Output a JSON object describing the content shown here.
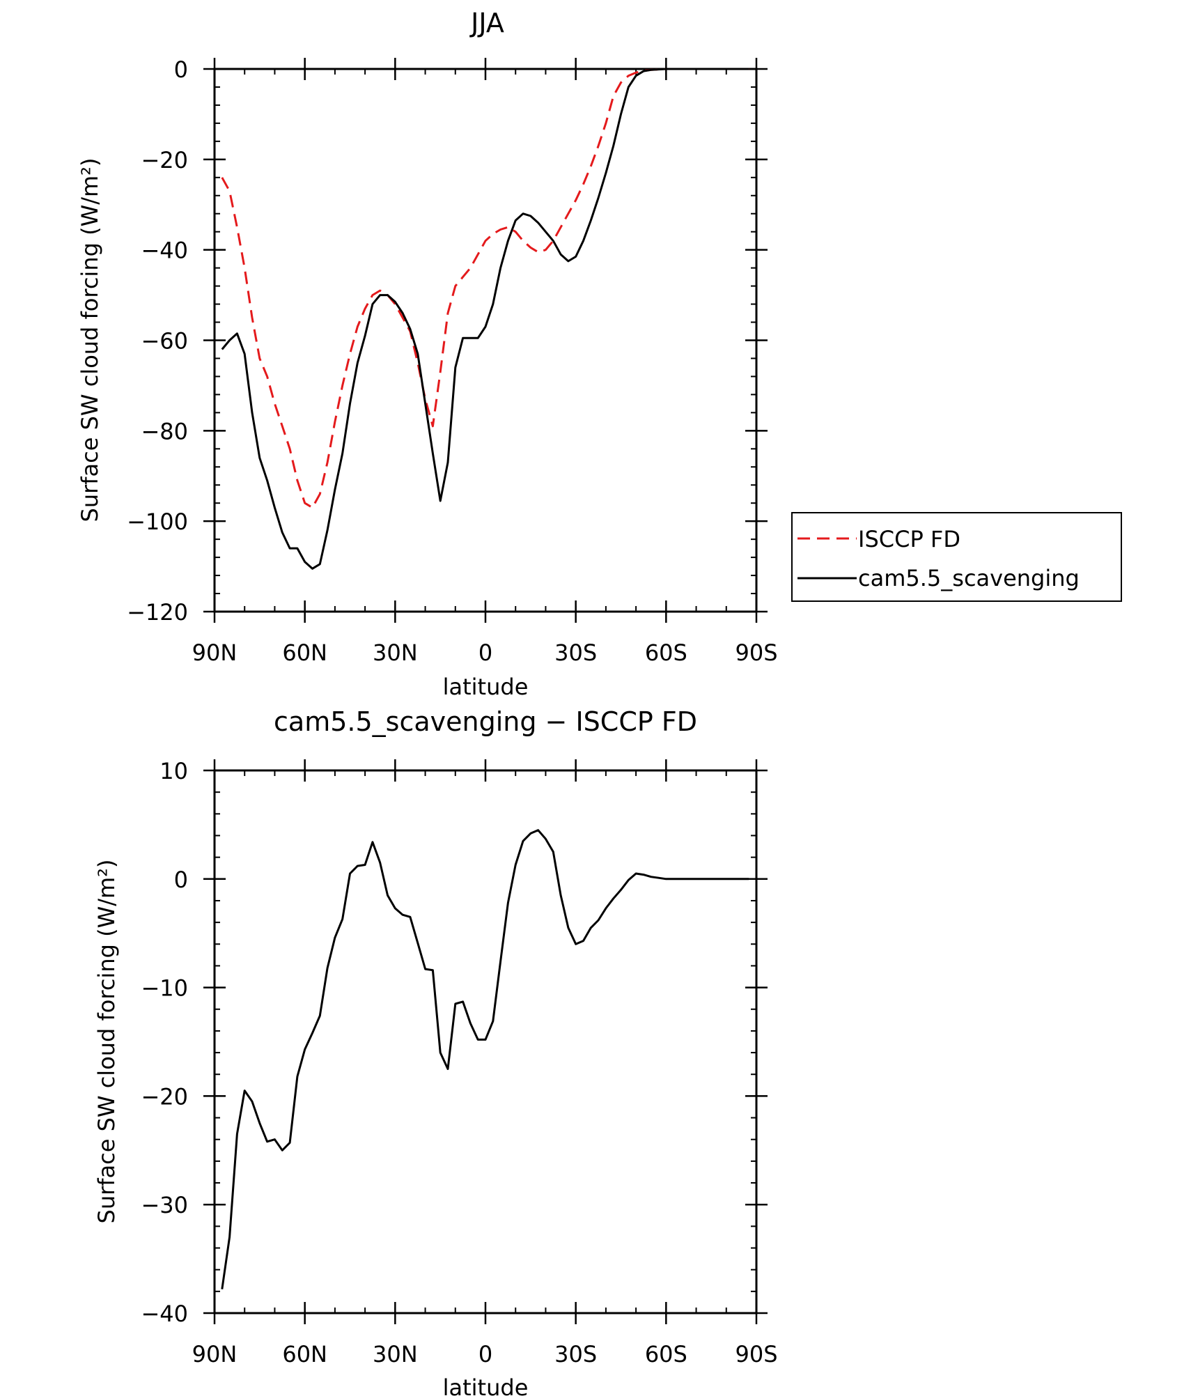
{
  "chart_data": [
    {
      "type": "line",
      "title": "JJA",
      "xlabel": "latitude",
      "ylabel": "Surface SW cloud forcing (W/m²)",
      "xlim": [
        90,
        -90
      ],
      "ylim": [
        -120,
        0
      ],
      "x_ticks": [
        90,
        60,
        30,
        0,
        -30,
        -60,
        -90
      ],
      "x_tick_labels": [
        "90N",
        "60N",
        "30N",
        "0",
        "30S",
        "60S",
        "90S"
      ],
      "y_ticks": [
        -120,
        -100,
        -80,
        -60,
        -40,
        -20,
        0
      ],
      "y_tick_labels": [
        "−120",
        "−100",
        "−80",
        "−60",
        "−40",
        "−20",
        "0"
      ],
      "legend": "right",
      "series": [
        {
          "name": "ISCCP FD",
          "color": "#e41a1c",
          "dash": "dashed",
          "x": [
            87.5,
            85,
            82.5,
            80,
            77.5,
            75,
            72.5,
            70,
            67.5,
            65,
            62.5,
            60,
            57.5,
            55,
            52.5,
            50,
            47.5,
            45,
            42.5,
            40,
            37.5,
            35,
            32.5,
            30,
            27.5,
            25,
            22.5,
            20,
            17.5,
            15,
            12.5,
            10,
            7.5,
            5,
            2.5,
            0,
            -2.5,
            -5,
            -7.5,
            -10,
            -12.5,
            -15,
            -17.5,
            -20,
            -22.5,
            -25,
            -27.5,
            -30,
            -32.5,
            -35,
            -37.5,
            -40,
            -42.5,
            -45,
            -47.5,
            -50,
            -52.5,
            -55,
            -57.5,
            -60,
            -62.5,
            -65,
            -67.5,
            -70,
            -72.5,
            -75,
            -77.5,
            -80,
            -82.5,
            -85,
            -87.5
          ],
          "y": [
            -24,
            -27,
            -35,
            -44,
            -55,
            -64,
            -68,
            -74,
            -79,
            -84,
            -91,
            -96,
            -97,
            -94,
            -87,
            -78,
            -70,
            -63,
            -57,
            -53,
            -50,
            -49,
            -50,
            -52,
            -55,
            -58,
            -65,
            -73,
            -79,
            -67,
            -54,
            -48,
            -46,
            -44,
            -41,
            -38,
            -36.5,
            -35.5,
            -35,
            -36,
            -38,
            -39.5,
            -40.5,
            -40,
            -38,
            -35,
            -32,
            -29,
            -25.5,
            -21.5,
            -17,
            -12,
            -6,
            -3,
            -1.5,
            -0.8,
            -0.4,
            -0.2,
            -0.1,
            0,
            0,
            0,
            0,
            0,
            0,
            0,
            0,
            0,
            0,
            0,
            0
          ]
        },
        {
          "name": "cam5.5_scavenging",
          "color": "#000000",
          "dash": "solid",
          "x": [
            87.5,
            85,
            82.5,
            80,
            77.5,
            75,
            72.5,
            70,
            67.5,
            65,
            62.5,
            60,
            57.5,
            55,
            52.5,
            50,
            47.5,
            45,
            42.5,
            40,
            37.5,
            35,
            32.5,
            30,
            27.5,
            25,
            22.5,
            20,
            17.5,
            15,
            12.5,
            10,
            7.5,
            5,
            2.5,
            0,
            -2.5,
            -5,
            -7.5,
            -10,
            -12.5,
            -15,
            -17.5,
            -20,
            -22.5,
            -25,
            -27.5,
            -30,
            -32.5,
            -35,
            -37.5,
            -40,
            -42.5,
            -45,
            -47.5,
            -50,
            -52.5,
            -55,
            -57.5,
            -60,
            -62.5,
            -65,
            -67.5,
            -70,
            -72.5,
            -75,
            -77.5,
            -80,
            -82.5,
            -85,
            -87.5
          ],
          "y": [
            -62,
            -60,
            -58.5,
            -63,
            -76,
            -86,
            -91,
            -97,
            -102.5,
            -106,
            -106,
            -109,
            -110.5,
            -109.5,
            -102,
            -93,
            -85,
            -74,
            -65,
            -59,
            -52,
            -50,
            -50,
            -51.5,
            -54,
            -57.5,
            -63,
            -74,
            -85,
            -95.5,
            -87,
            -66,
            -59.5,
            -59.5,
            -59.5,
            -57,
            -52,
            -44,
            -38,
            -33.5,
            -32,
            -32.5,
            -34,
            -36,
            -38,
            -41,
            -42.5,
            -41.5,
            -38,
            -33.5,
            -28.5,
            -23,
            -17,
            -10,
            -4,
            -1.5,
            -0.5,
            -0.2,
            -0.1,
            0,
            0,
            0,
            0,
            0,
            0,
            0,
            0,
            0,
            0,
            0,
            0
          ]
        }
      ]
    },
    {
      "type": "line",
      "title": "cam5.5_scavenging − ISCCP FD",
      "xlabel": "latitude",
      "ylabel": "Surface SW cloud forcing (W/m²)",
      "xlim": [
        90,
        -90
      ],
      "ylim": [
        -40,
        10
      ],
      "x_ticks": [
        90,
        60,
        30,
        0,
        -30,
        -60,
        -90
      ],
      "x_tick_labels": [
        "90N",
        "60N",
        "30N",
        "0",
        "30S",
        "60S",
        "90S"
      ],
      "y_ticks": [
        -40,
        -30,
        -20,
        -10,
        0,
        10
      ],
      "y_tick_labels": [
        "−40",
        "−30",
        "−20",
        "−10",
        "0",
        "10"
      ],
      "series": [
        {
          "color": "#000000",
          "dash": "solid",
          "x": [
            87.5,
            85,
            82.5,
            80,
            77.5,
            75,
            72.5,
            70,
            67.5,
            65,
            62.5,
            60,
            57.5,
            55,
            52.5,
            50,
            47.5,
            45,
            42.5,
            40,
            37.5,
            35,
            32.5,
            30,
            27.5,
            25,
            22.5,
            20,
            17.5,
            15,
            12.5,
            10,
            7.5,
            5,
            2.5,
            0,
            -2.5,
            -5,
            -7.5,
            -10,
            -12.5,
            -15,
            -17.5,
            -20,
            -22.5,
            -25,
            -27.5,
            -30,
            -32.5,
            -35,
            -37.5,
            -40,
            -42.5,
            -45,
            -47.5,
            -50,
            -52.5,
            -55,
            -57.5,
            -60,
            -62.5,
            -65,
            -67.5,
            -70,
            -72.5,
            -75,
            -77.5,
            -80,
            -82.5,
            -85,
            -87.5
          ],
          "y": [
            -37.8,
            -33,
            -23.5,
            -19.5,
            -20.5,
            -22.5,
            -24.2,
            -24,
            -25,
            -24.3,
            -18.2,
            -15.7,
            -14.2,
            -12.6,
            -8.2,
            -5.4,
            -3.7,
            0.5,
            1.2,
            1.3,
            3.4,
            1.5,
            -1.5,
            -2.7,
            -3.3,
            -3.5,
            -5.9,
            -8.3,
            -8.4,
            -16,
            -17.5,
            -11.5,
            -11.3,
            -13.3,
            -14.8,
            -14.8,
            -13.1,
            -7.6,
            -2.2,
            1.3,
            3.5,
            4.2,
            4.5,
            3.7,
            2.5,
            -1.5,
            -4.5,
            -6,
            -5.7,
            -4.5,
            -3.8,
            -2.7,
            -1.8,
            -1,
            -0.1,
            0.5,
            0.4,
            0.2,
            0.1,
            0,
            0,
            0,
            0,
            0,
            0,
            0,
            0,
            0,
            0,
            0,
            0
          ]
        }
      ]
    }
  ]
}
